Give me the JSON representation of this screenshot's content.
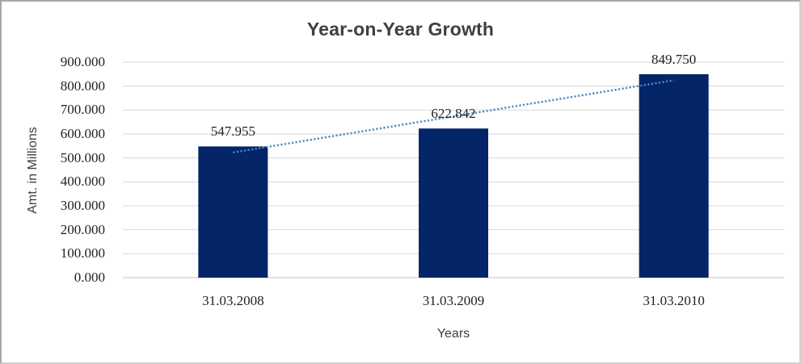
{
  "chart_data": {
    "type": "bar",
    "title": "Year-on-Year Growth",
    "xlabel": "Years",
    "ylabel": "Amt. in Millions",
    "categories": [
      "31.03.2008",
      "31.03.2009",
      "31.03.2010"
    ],
    "values": [
      547.955,
      622.842,
      849.75
    ],
    "data_labels": [
      "547.955",
      "622.842",
      "849.750"
    ],
    "ylim": [
      0,
      900
    ],
    "y_ticks": [
      {
        "value": 0,
        "label": "0.000"
      },
      {
        "value": 100,
        "label": "100.000"
      },
      {
        "value": 200,
        "label": "200.000"
      },
      {
        "value": 300,
        "label": "300.000"
      },
      {
        "value": 400,
        "label": "400.000"
      },
      {
        "value": 500,
        "label": "500.000"
      },
      {
        "value": 600,
        "label": "600.000"
      },
      {
        "value": 700,
        "label": "700.000"
      },
      {
        "value": 800,
        "label": "800.000"
      },
      {
        "value": 900,
        "label": "900.000"
      }
    ],
    "grid": true,
    "legend": "none",
    "trendline": {
      "type": "linear",
      "style": "dotted"
    },
    "colors": {
      "bar": "#052569",
      "trendline": "#4e86c6",
      "gridline": "#d9d9d9",
      "axis_line": "#c3c3c3",
      "label_text": "#1f1f1f",
      "title_text": "#3f3f3f",
      "axis_title_text": "#404040"
    }
  }
}
